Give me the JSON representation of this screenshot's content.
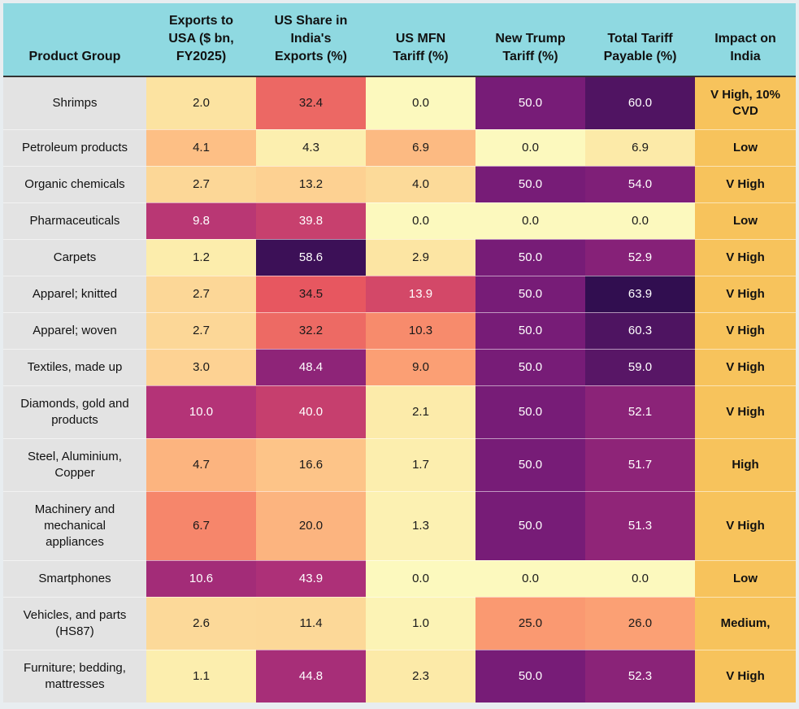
{
  "chart_data": {
    "type": "table",
    "columns": [
      "Product Group",
      "Exports to\nUSA ($ bn,\nFY2025)",
      "US Share in\nIndia's\nExports (%)",
      "US MFN\nTariff (%)",
      "New Trump\nTariff (%)",
      "Total Tariff\nPayable (%)",
      "Impact on\nIndia"
    ],
    "rows": [
      {
        "group": "Shrimps",
        "exports": "2.0",
        "share": "32.4",
        "mfn": "0.0",
        "trump": "50.0",
        "total": "60.0",
        "impact": "V High, 10%\nCVD"
      },
      {
        "group": "Petroleum products",
        "exports": "4.1",
        "share": "4.3",
        "mfn": "6.9",
        "trump": "0.0",
        "total": "6.9",
        "impact": "Low"
      },
      {
        "group": "Organic chemicals",
        "exports": "2.7",
        "share": "13.2",
        "mfn": "4.0",
        "trump": "50.0",
        "total": "54.0",
        "impact": "V High"
      },
      {
        "group": "Pharmaceuticals",
        "exports": "9.8",
        "share": "39.8",
        "mfn": "0.0",
        "trump": "0.0",
        "total": "0.0",
        "impact": "Low"
      },
      {
        "group": "Carpets",
        "exports": "1.2",
        "share": "58.6",
        "mfn": "2.9",
        "trump": "50.0",
        "total": "52.9",
        "impact": "V High"
      },
      {
        "group": "Apparel; knitted",
        "exports": "2.7",
        "share": "34.5",
        "mfn": "13.9",
        "trump": "50.0",
        "total": "63.9",
        "impact": "V High"
      },
      {
        "group": "Apparel; woven",
        "exports": "2.7",
        "share": "32.2",
        "mfn": "10.3",
        "trump": "50.0",
        "total": "60.3",
        "impact": "V High"
      },
      {
        "group": "Textiles, made up",
        "exports": "3.0",
        "share": "48.4",
        "mfn": "9.0",
        "trump": "50.0",
        "total": "59.0",
        "impact": "V High"
      },
      {
        "group": "Diamonds, gold and\nproducts",
        "exports": "10.0",
        "share": "40.0",
        "mfn": "2.1",
        "trump": "50.0",
        "total": "52.1",
        "impact": "V High"
      },
      {
        "group": "Steel, Aluminium,\nCopper",
        "exports": "4.7",
        "share": "16.6",
        "mfn": "1.7",
        "trump": "50.0",
        "total": "51.7",
        "impact": "High"
      },
      {
        "group": "Machinery and\nmechanical\nappliances",
        "exports": "6.7",
        "share": "20.0",
        "mfn": "1.3",
        "trump": "50.0",
        "total": "51.3",
        "impact": "V High"
      },
      {
        "group": "Smartphones",
        "exports": "10.6",
        "share": "43.9",
        "mfn": "0.0",
        "trump": "0.0",
        "total": "0.0",
        "impact": "Low"
      },
      {
        "group": "Vehicles, and parts\n(HS87)",
        "exports": "2.6",
        "share": "11.4",
        "mfn": "1.0",
        "trump": "25.0",
        "total": "26.0",
        "impact": "Medium,"
      },
      {
        "group": "Furniture; bedding,\nmattresses",
        "exports": "1.1",
        "share": "44.8",
        "mfn": "2.3",
        "trump": "50.0",
        "total": "52.3",
        "impact": "V High"
      }
    ]
  },
  "colors": {
    "header_bg": "#8fd9e1",
    "group_bg": "#e3e3e3",
    "impact_bg": "#f7c35c"
  }
}
